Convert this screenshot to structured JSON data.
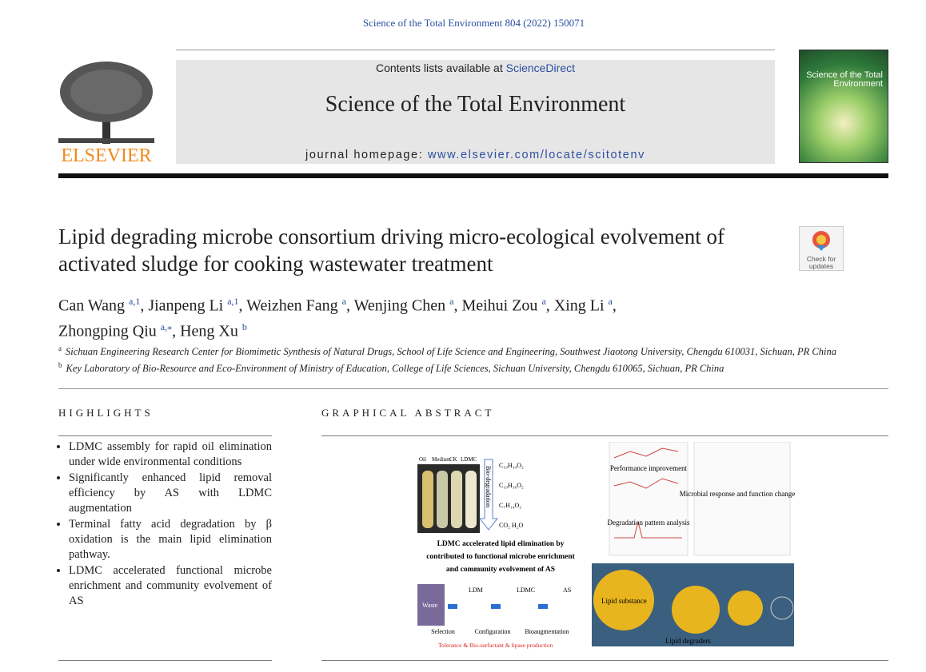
{
  "header": {
    "citation": "Science of the Total Environment 804 (2022) 150071",
    "contents_prefix": "Contents lists available at ",
    "contents_link": "ScienceDirect",
    "journal": "Science of the Total Environment",
    "homepage_prefix": "journal homepage: ",
    "homepage_link": "www.elsevier.com/locate/scitotenv",
    "publisher": "ELSEVIER",
    "cover_title": "Science of the Total Environment"
  },
  "article": {
    "title": "Lipid degrading microbe consortium driving micro-ecological evolvement of activated sludge for cooking wastewater treatment",
    "check_updates": "Check for updates",
    "authors": [
      {
        "name": "Can Wang ",
        "sup": "a,1"
      },
      {
        "name": ", Jianpeng Li ",
        "sup": "a,1"
      },
      {
        "name": ", Weizhen Fang ",
        "sup": "a"
      },
      {
        "name": ", Wenjing Chen ",
        "sup": "a"
      },
      {
        "name": ", Meihui Zou ",
        "sup": "a"
      },
      {
        "name": ", Xing Li ",
        "sup": "a"
      },
      {
        "name": ",",
        "sup": ""
      },
      {
        "name": "Zhongping Qiu ",
        "sup": "a,⁎"
      },
      {
        "name": ", Heng Xu ",
        "sup": "b"
      }
    ],
    "affiliations": [
      {
        "mark": "a",
        "text": "Sichuan Engineering Research Center for Biomimetic Synthesis of Natural Drugs, School of Life Science and Engineering, Southwest Jiaotong University, Chengdu 610031, Sichuan, PR China"
      },
      {
        "mark": "b",
        "text": "Key Laboratory of Bio-Resource and Eco-Environment of Ministry of Education, College of Life Sciences, Sichuan University, Chengdu 610065, Sichuan, PR China"
      }
    ]
  },
  "highlights": {
    "heading": "HIGHLIGHTS",
    "items": [
      "LDMC assembly for rapid oil elimination under wide environmental conditions",
      "Significantly enhanced lipid removal efficiency by AS with LDMC augmentation",
      "Terminal fatty acid degradation by β oxidation is the main lipid elimination pathway.",
      "LDMC accelerated functional microbe enrichment and community evolvement of AS"
    ]
  },
  "graphical_abstract": {
    "heading": "GRAPHICAL ABSTRACT",
    "tubes": [
      "Oil",
      "Medium",
      "CK",
      "LDMC"
    ],
    "arrow": "Bio-degradation",
    "compounds": [
      "C₁₉H₃₄O₂",
      "C₁₉H₃₆O₂",
      "C₇H₁₄O₂",
      "CO₂  H₂O"
    ],
    "caption": [
      "LDMC accelerated lipid elimination by",
      "contributed to functional microbe enrichment",
      "and community evolvement of AS"
    ],
    "panels": [
      "Performance improvement",
      "Microbial response and function change",
      "Degradation pattern analysis"
    ],
    "flow": [
      "Waste",
      "LDM",
      "LDMC",
      "AS"
    ],
    "steps": [
      "Selection",
      "Configuration",
      "Bioaugmentation"
    ],
    "note": "Tolerance & Bio-surfactant & lipase production",
    "lipid": "Lipid substance",
    "degraders": "Lipid degraders"
  }
}
